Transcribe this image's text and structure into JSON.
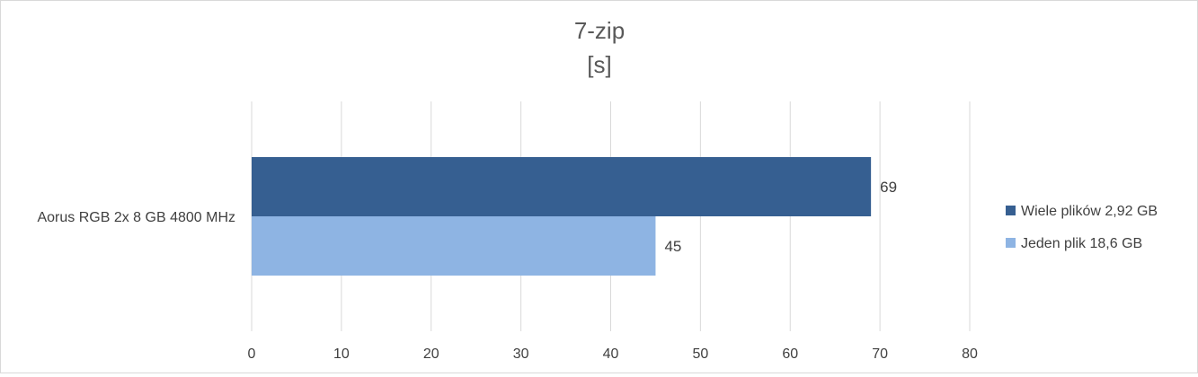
{
  "chart_data": {
    "type": "bar",
    "orientation": "horizontal",
    "title": "7-zip",
    "subtitle": "[s]",
    "categories": [
      "Aorus RGB 2x 8 GB 4800 MHz"
    ],
    "series": [
      {
        "name": "Wiele plików 2,92 GB",
        "values": [
          69
        ],
        "color": "#365f91"
      },
      {
        "name": "Jeden plik 18,6 GB",
        "values": [
          45
        ],
        "color": "#8eb4e3"
      }
    ],
    "xlim": [
      0,
      80
    ],
    "xticks": [
      0,
      10,
      20,
      30,
      40,
      50,
      60,
      70,
      80
    ],
    "grid": true,
    "data_labels": true,
    "legend_position": "right"
  },
  "colors": {
    "grid": "#d9d9d9",
    "text": "#404040",
    "title": "#595959"
  }
}
